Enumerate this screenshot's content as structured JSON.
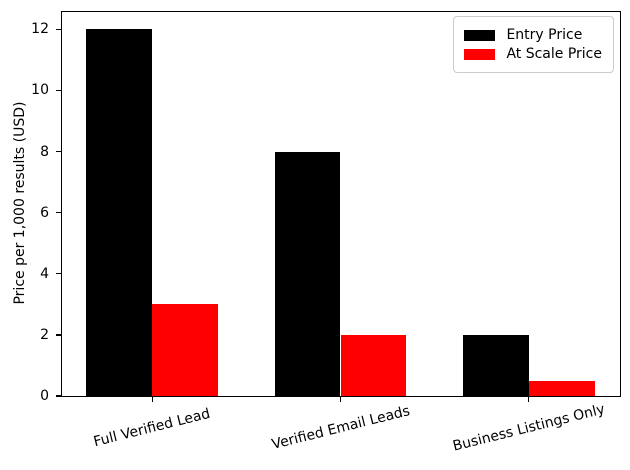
{
  "chart_data": {
    "type": "bar",
    "title": "",
    "xlabel": "",
    "ylabel": "Price per 1,000 results (USD)",
    "categories": [
      "Full Verified Lead",
      "Verified Email Leads",
      "Business Listings Only"
    ],
    "series": [
      {
        "name": "Entry Price",
        "color": "#000000",
        "values": [
          12,
          8,
          2
        ]
      },
      {
        "name": "At Scale Price",
        "color": "#ff0000",
        "values": [
          3,
          2,
          0.5
        ]
      }
    ],
    "ylim": [
      0,
      12.6
    ],
    "yticks": [
      0,
      2,
      4,
      6,
      8,
      10,
      12
    ],
    "bar_width": 0.35,
    "x_margin": 0.485,
    "tick_label_rotation_deg": -14,
    "grid": false,
    "legend_position": "upper right",
    "frame_color": "#000000",
    "background_color": "#ffffff"
  }
}
